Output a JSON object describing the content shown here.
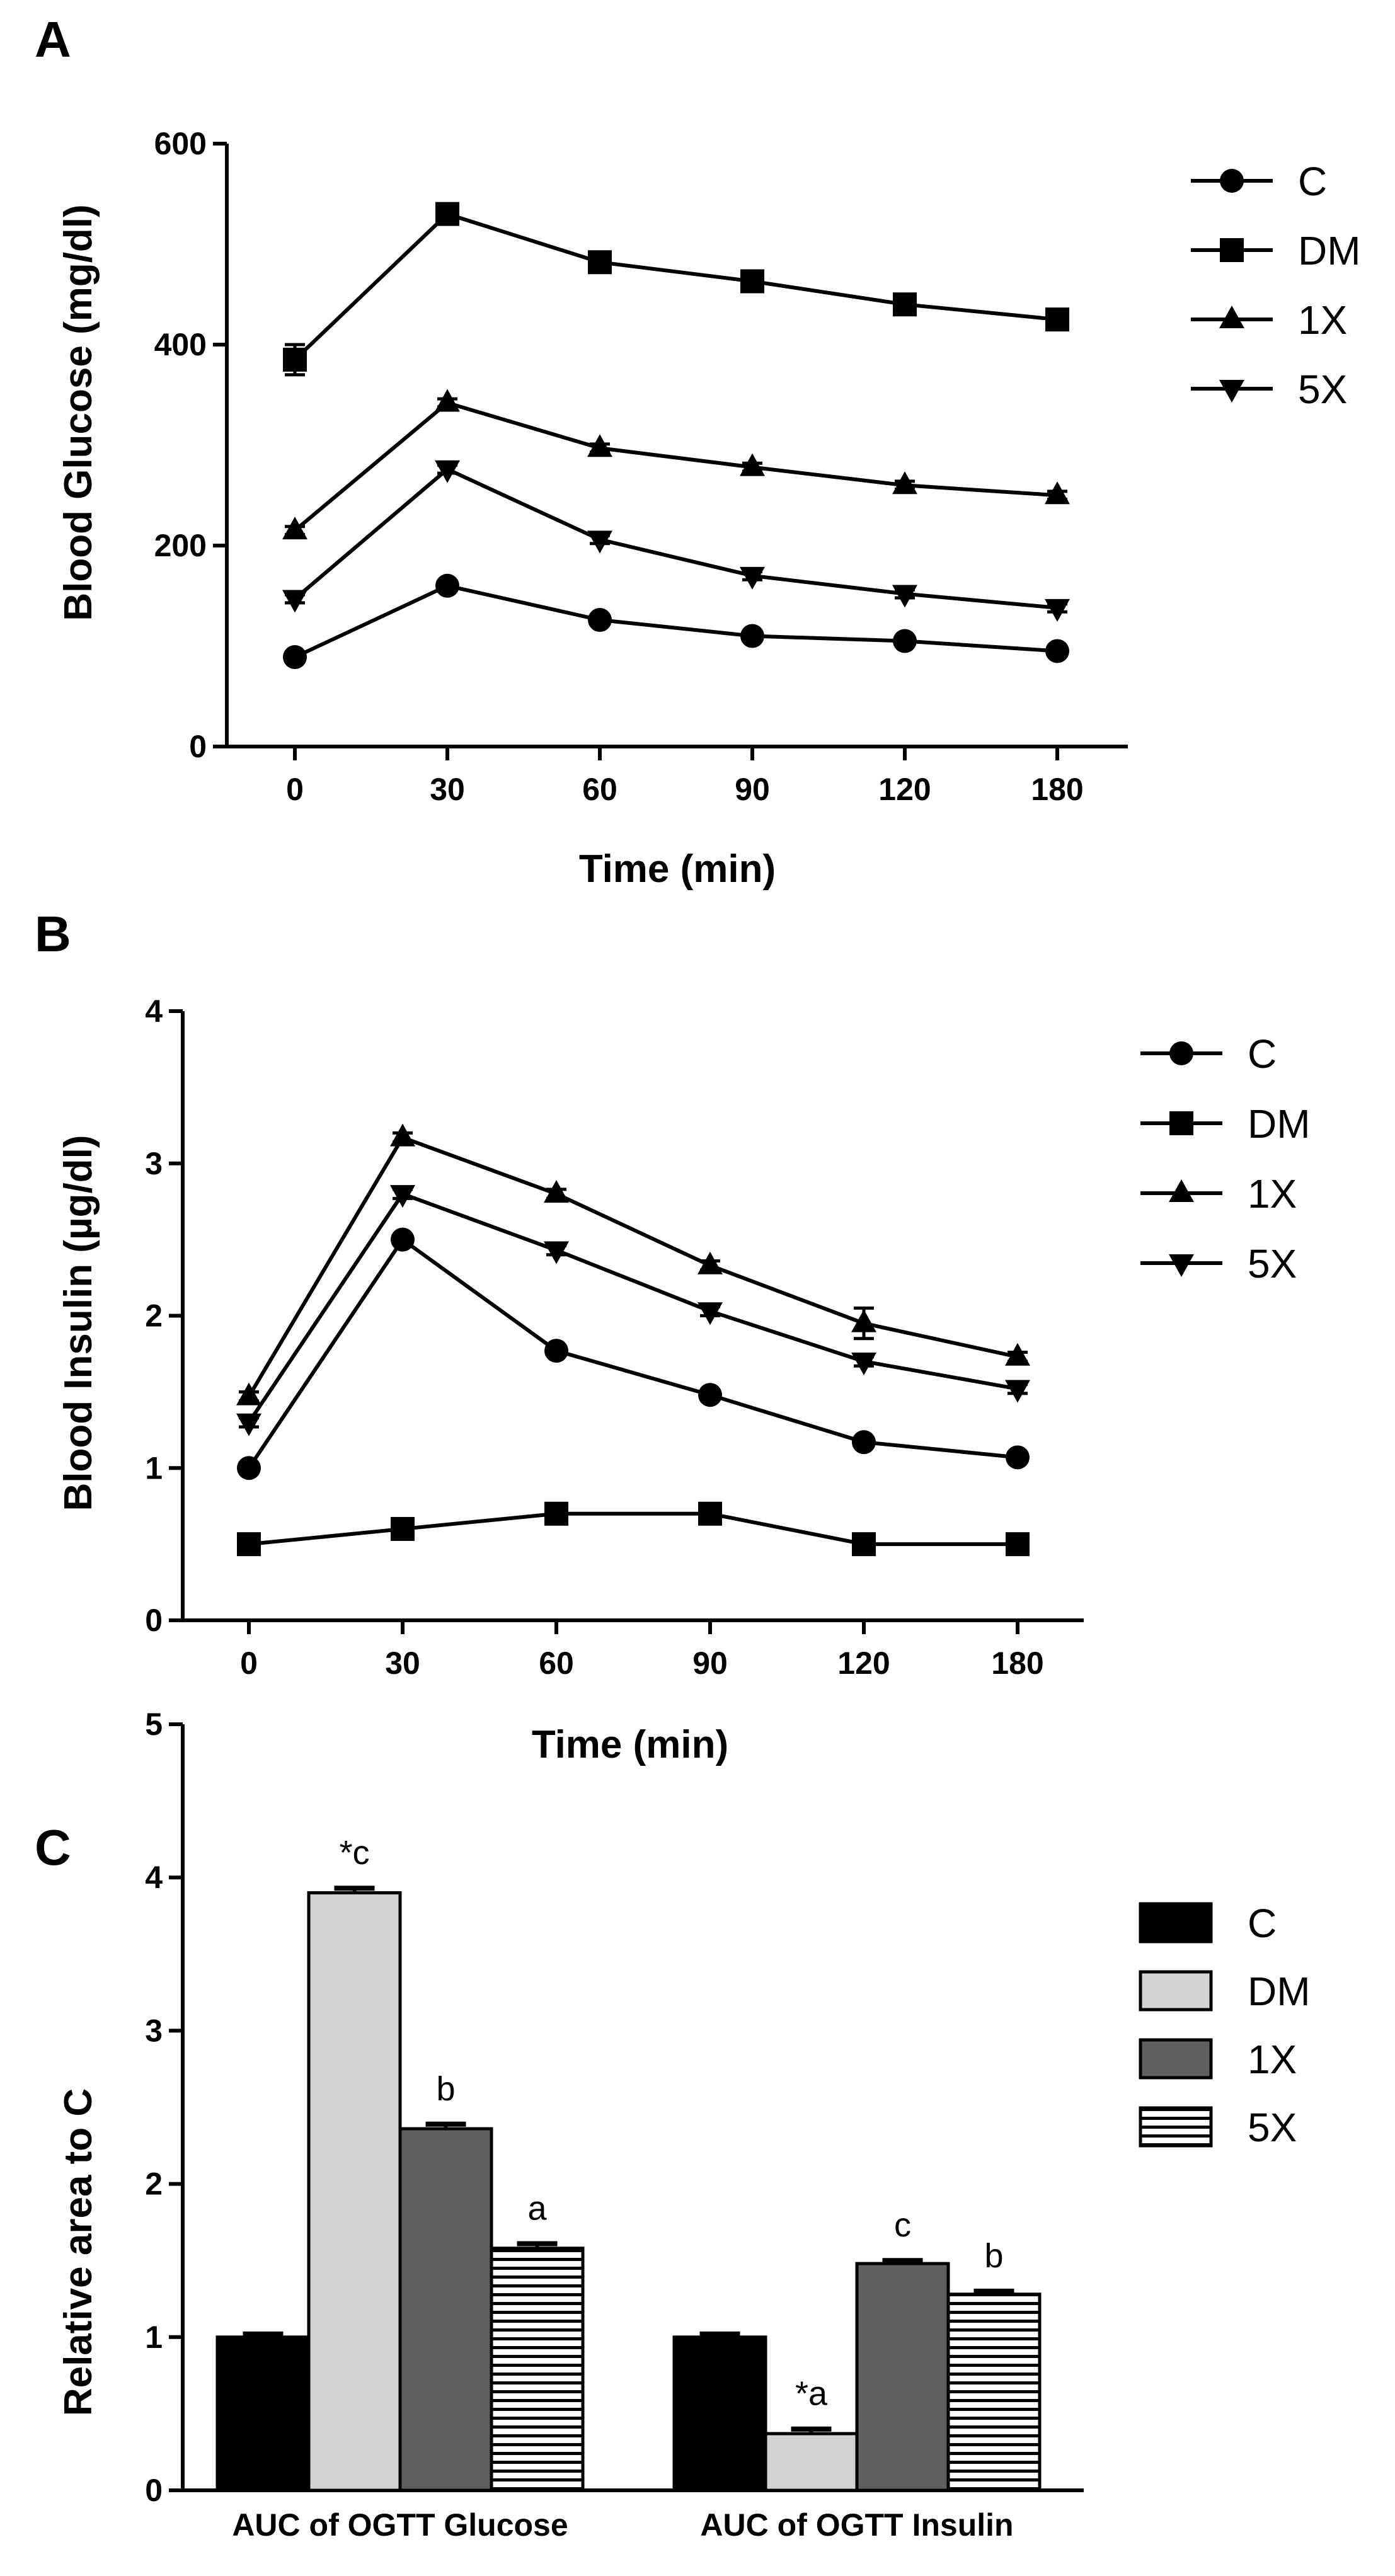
{
  "panels": [
    {
      "letter": "A",
      "chart_data": {
        "type": "line",
        "xlabel": "Time (min)",
        "ylabel": "Blood Glucose (mg/dl)",
        "x": [
          0,
          30,
          60,
          90,
          120,
          180
        ],
        "x_tick_labels": [
          "0",
          "30",
          "60",
          "90",
          "120",
          "180"
        ],
        "ylim": [
          0,
          600
        ],
        "y_ticks": [
          0,
          200,
          400,
          600
        ],
        "y_tick_labels": [
          "0",
          "200",
          "400",
          "600"
        ],
        "legend_position": "right",
        "series": [
          {
            "name": "C",
            "marker": "circle",
            "values": [
              89,
              160,
              126,
              110,
              105,
              95
            ],
            "errors": [
              4,
              4,
              4,
              3,
              3,
              3
            ]
          },
          {
            "name": "DM",
            "marker": "square",
            "values": [
              385,
              530,
              482,
              463,
              440,
              425
            ],
            "errors": [
              15,
              5,
              5,
              5,
              5,
              5
            ]
          },
          {
            "name": "1X",
            "marker": "triangle-up",
            "values": [
              215,
              342,
              297,
              278,
              260,
              250
            ],
            "errors": [
              4,
              4,
              4,
              4,
              4,
              4
            ]
          },
          {
            "name": "5X",
            "marker": "triangle-down",
            "values": [
              147,
              276,
              206,
              170,
              152,
              138
            ],
            "errors": [
              4,
              4,
              4,
              4,
              4,
              4
            ]
          }
        ]
      }
    },
    {
      "letter": "B",
      "chart_data": {
        "type": "line",
        "xlabel": "Time (min)",
        "ylabel": "Blood Insulin (µg/dl)",
        "x": [
          0,
          30,
          60,
          90,
          120,
          180
        ],
        "x_tick_labels": [
          "0",
          "30",
          "60",
          "90",
          "120",
          "180"
        ],
        "ylim": [
          0,
          4
        ],
        "y_ticks": [
          0,
          1,
          2,
          3,
          4
        ],
        "y_tick_labels": [
          "0",
          "1",
          "2",
          "3",
          "4"
        ],
        "legend_position": "right",
        "series": [
          {
            "name": "C",
            "marker": "circle",
            "values": [
              1.0,
              2.5,
              1.77,
              1.48,
              1.17,
              1.07
            ],
            "errors": [
              0.03,
              0.03,
              0.03,
              0.03,
              0.03,
              0.03
            ]
          },
          {
            "name": "DM",
            "marker": "square",
            "values": [
              0.5,
              0.6,
              0.7,
              0.7,
              0.5,
              0.5
            ],
            "errors": [
              0.02,
              0.02,
              0.02,
              0.02,
              0.02,
              0.02
            ]
          },
          {
            "name": "1X",
            "marker": "triangle-up",
            "values": [
              1.47,
              3.17,
              2.8,
              2.33,
              1.95,
              1.73
            ],
            "errors": [
              0.03,
              0.03,
              0.03,
              0.03,
              0.1,
              0.03
            ]
          },
          {
            "name": "5X",
            "marker": "triangle-down",
            "values": [
              1.3,
              2.8,
              2.43,
              2.03,
              1.7,
              1.52
            ],
            "errors": [
              0.03,
              0.03,
              0.03,
              0.03,
              0.03,
              0.03
            ]
          }
        ]
      }
    },
    {
      "letter": "C",
      "chart_data": {
        "type": "bar",
        "xlabel": "",
        "ylabel": "Relative area to C",
        "categories": [
          "AUC of OGTT Glucose",
          "AUC of OGTT Insulin"
        ],
        "ylim": [
          0,
          5
        ],
        "y_ticks": [
          0,
          1,
          2,
          3,
          4,
          5
        ],
        "y_tick_labels": [
          "0",
          "1",
          "2",
          "3",
          "4",
          "5"
        ],
        "legend_position": "right",
        "series": [
          {
            "name": "C",
            "fill": "black",
            "values": [
              1.0,
              1.0
            ],
            "errors": [
              0.02,
              0.02
            ],
            "annotations": [
              "",
              ""
            ]
          },
          {
            "name": "DM",
            "fill": "light-gray",
            "values": [
              3.9,
              0.37
            ],
            "errors": [
              0.03,
              0.03
            ],
            "annotations": [
              "*c",
              "*a"
            ]
          },
          {
            "name": "1X",
            "fill": "dark-gray",
            "values": [
              2.36,
              1.48
            ],
            "errors": [
              0.03,
              0.02
            ],
            "annotations": [
              "b",
              "c"
            ]
          },
          {
            "name": "5X",
            "fill": "horizontal-stripes",
            "values": [
              1.58,
              1.28
            ],
            "errors": [
              0.03,
              0.02
            ],
            "annotations": [
              "a",
              "b"
            ]
          }
        ]
      }
    }
  ],
  "colors": {
    "black": "#000000",
    "light-gray": "#d3d3d3",
    "dark-gray": "#5f5f5f",
    "white": "#ffffff"
  }
}
